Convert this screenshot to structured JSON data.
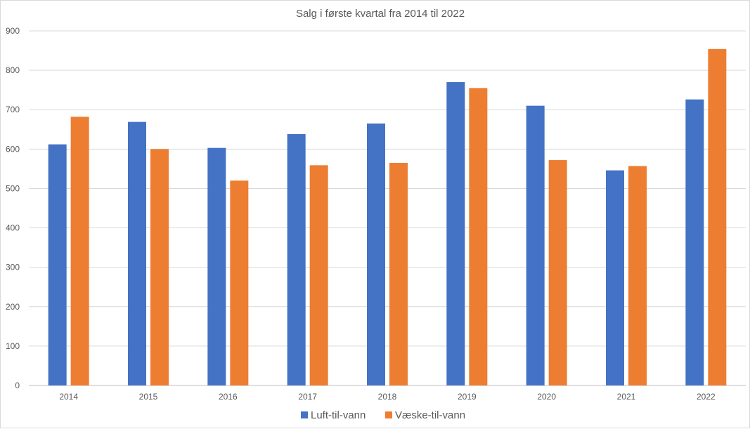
{
  "chart_data": {
    "type": "bar",
    "title": "Salg i første kvartal fra 2014 til 2022",
    "xlabel": "",
    "ylabel": "",
    "categories": [
      "2014",
      "2015",
      "2016",
      "2017",
      "2018",
      "2019",
      "2020",
      "2021",
      "2022"
    ],
    "series": [
      {
        "name": "Luft-til-vann",
        "color": "#4472c4",
        "values": [
          612,
          669,
          603,
          638,
          665,
          770,
          710,
          546,
          726
        ]
      },
      {
        "name": "Væske-til-vann",
        "color": "#ed7d31",
        "values": [
          682,
          600,
          520,
          559,
          565,
          755,
          572,
          557,
          854
        ]
      }
    ],
    "ylim": [
      0,
      900
    ],
    "yticks": [
      "0",
      "100",
      "200",
      "300",
      "400",
      "500",
      "600",
      "700",
      "800",
      "900"
    ],
    "grid": true,
    "legend_position": "bottom"
  }
}
